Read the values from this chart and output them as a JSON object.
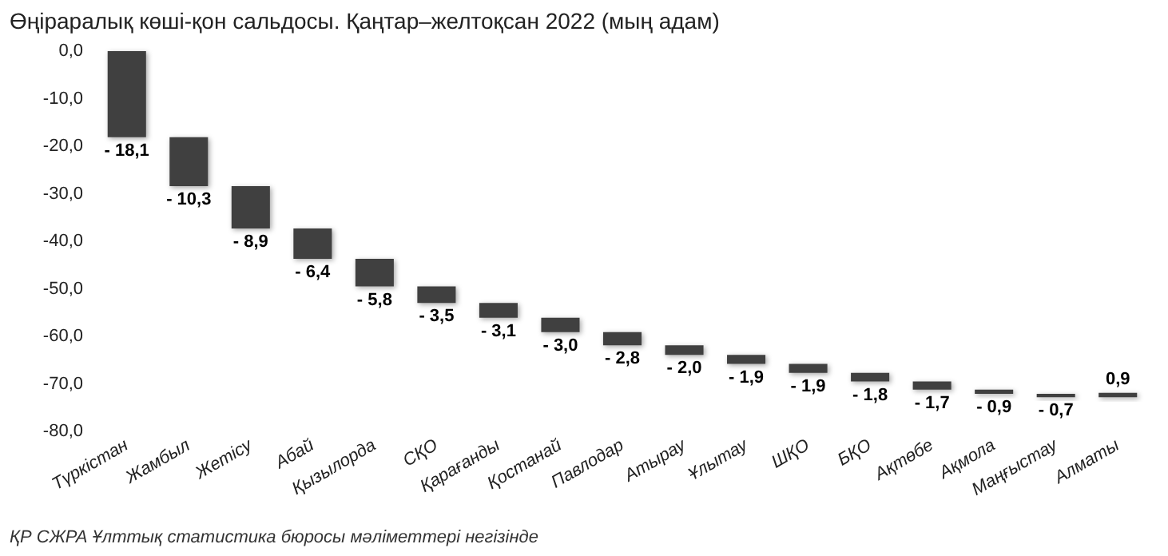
{
  "chart_data": {
    "type": "bar",
    "title": "Өңіраралық көші-қон сальдосы. Қаңтар–желтоқсан 2022 (мың адам)",
    "categories": [
      "Түркістан",
      "Жамбыл",
      "Жетісу",
      "Абай",
      "Қызылорда",
      "СҚО",
      "Қарағанды",
      "Қостанай",
      "Павлодар",
      "Атырау",
      "Ұлытау",
      "ШҚО",
      "БҚО",
      "Ақтөбе",
      "Ақмола",
      "Маңғыстау",
      "Алматы"
    ],
    "values": [
      -18.1,
      -10.3,
      -8.9,
      -6.4,
      -5.8,
      -3.5,
      -3.1,
      -3.0,
      -2.8,
      -2.0,
      -1.9,
      -1.9,
      -1.8,
      -1.7,
      -0.9,
      -0.7,
      0.9
    ],
    "base": [
      0,
      -18.1,
      -28.4,
      -37.3,
      -43.7,
      -49.5,
      -53.0,
      -56.1,
      -59.1,
      -61.9,
      -63.9,
      -65.8,
      -67.7,
      -69.5,
      -71.2,
      -72.1,
      -72.8
    ],
    "value_labels": [
      "- 18,1",
      "- 10,3",
      "- 8,9",
      "- 6,4",
      "- 5,8",
      "- 3,5",
      "- 3,1",
      "- 3,0",
      "- 2,8",
      "- 2,0",
      "- 1,9",
      "- 1,9",
      "- 1,8",
      "- 1,7",
      "- 0,9",
      "- 0,7",
      "0,9"
    ],
    "color": "#404040",
    "ylim": [
      -80,
      0
    ],
    "yticks": [
      {
        "value": 0,
        "label": "0,0"
      },
      {
        "value": -10,
        "label": "-10,0"
      },
      {
        "value": -20,
        "label": "-20,0"
      },
      {
        "value": -30,
        "label": "-30,0"
      },
      {
        "value": -40,
        "label": "-40,0"
      },
      {
        "value": -50,
        "label": "-50,0"
      },
      {
        "value": -60,
        "label": "-60,0"
      },
      {
        "value": -70,
        "label": "-70,0"
      },
      {
        "value": -80,
        "label": "-80,0"
      }
    ],
    "grid": false,
    "annotations": [
      "ҚР СЖРА Ұлттық статистика бюросы мәліметтері негізінде"
    ]
  }
}
